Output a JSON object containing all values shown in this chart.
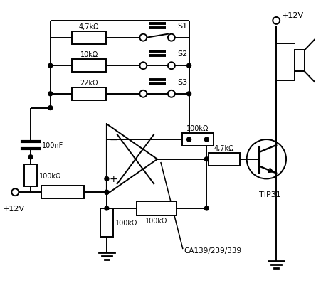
{
  "background": "#ffffff",
  "line_color": "#000000",
  "line_width": 1.4,
  "figsize": [
    4.44,
    4.06
  ],
  "dpi": 100,
  "labels": {
    "r1": "4,7kΩ",
    "r2": "10kΩ",
    "r3": "22kΩ",
    "r4": "100nF",
    "r5": "100kΩ",
    "r6": "4,7kΩ",
    "r7": "100kΩ",
    "r8": "100kΩ",
    "r9": "100kΩ",
    "s1": "S1",
    "s2": "S2",
    "s3": "S3",
    "tip31": "TIP31",
    "ca": "CA139/239/339",
    "v12top": "+12V",
    "v12bot": "+12V"
  }
}
